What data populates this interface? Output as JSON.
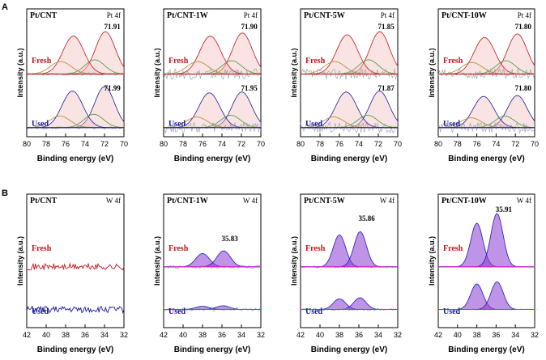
{
  "figure": {
    "section_labels": [
      "A",
      "B"
    ],
    "xlabel": "Binding energy (eV)",
    "ylabel": "Intensity (a.u.)",
    "colors": {
      "fresh_envelope": "#c0161c",
      "used_envelope": "#1a1a9c",
      "pt_fill": "#f2c2c2",
      "pt_green": "#3d9a3a",
      "pt_brown": "#b08a2a",
      "w_fill": "#8a3cd4",
      "w_envelope": "#d01ccf",
      "raw": "#9a9a9a",
      "blue_comp": "#1a1abb",
      "axis": "#000000"
    }
  },
  "chart_data": [
    {
      "id": "A1",
      "type": "line",
      "title": "Pt/CNT",
      "core_level": "Pt 4f",
      "xlim": [
        80,
        70
      ],
      "xticks": [
        80,
        78,
        76,
        74,
        72,
        70
      ],
      "xlabel": "Binding energy (eV)",
      "ylabel": "Intensity (a.u.)",
      "series": [
        {
          "name": "Fresh",
          "offset": 1.25,
          "noise": 0.03,
          "peaks": [
            {
              "c": 71.91,
              "h": 0.95,
              "w": 1.6
            },
            {
              "c": 75.2,
              "h": 0.85,
              "w": 1.7
            },
            {
              "c": 73.0,
              "h": 0.32,
              "w": 1.6
            },
            {
              "c": 76.5,
              "h": 0.28,
              "w": 1.7
            }
          ],
          "peak_label": "71.91"
        },
        {
          "name": "Used",
          "offset": 0.05,
          "noise": 0.03,
          "peaks": [
            {
              "c": 71.99,
              "h": 0.92,
              "w": 1.6
            },
            {
              "c": 75.3,
              "h": 0.82,
              "w": 1.7
            },
            {
              "c": 73.1,
              "h": 0.3,
              "w": 1.6
            },
            {
              "c": 76.6,
              "h": 0.26,
              "w": 1.7
            }
          ],
          "peak_label": "71.99"
        }
      ]
    },
    {
      "id": "A2",
      "type": "line",
      "title": "Pt/CNT-1W",
      "core_level": "Pt 4f",
      "xlim": [
        80,
        70
      ],
      "xticks": [
        80,
        78,
        76,
        74,
        72,
        70
      ],
      "xlabel": "Binding energy (eV)",
      "ylabel": "Intensity (a.u.)",
      "series": [
        {
          "name": "Fresh",
          "offset": 1.25,
          "noise": 0.12,
          "peaks": [
            {
              "c": 71.9,
              "h": 0.92,
              "w": 1.6
            },
            {
              "c": 75.2,
              "h": 0.85,
              "w": 1.7
            },
            {
              "c": 73.0,
              "h": 0.3,
              "w": 1.6
            },
            {
              "c": 76.5,
              "h": 0.28,
              "w": 1.7
            }
          ],
          "peak_label": "71.90"
        },
        {
          "name": "Used",
          "offset": 0.05,
          "noise": 0.12,
          "peaks": [
            {
              "c": 71.95,
              "h": 0.8,
              "w": 1.6
            },
            {
              "c": 75.3,
              "h": 0.78,
              "w": 1.7
            },
            {
              "c": 73.1,
              "h": 0.28,
              "w": 1.6
            },
            {
              "c": 76.6,
              "h": 0.24,
              "w": 1.7
            }
          ],
          "peak_label": "71.95"
        }
      ]
    },
    {
      "id": "A3",
      "type": "line",
      "title": "Pt/CNT-5W",
      "core_level": "Pt 4f",
      "xlim": [
        80,
        70
      ],
      "xticks": [
        80,
        78,
        76,
        74,
        72,
        70
      ],
      "xlabel": "Binding energy (eV)",
      "ylabel": "Intensity (a.u.)",
      "series": [
        {
          "name": "Fresh",
          "offset": 1.25,
          "noise": 0.12,
          "peaks": [
            {
              "c": 71.85,
              "h": 0.95,
              "w": 1.6
            },
            {
              "c": 75.2,
              "h": 0.88,
              "w": 1.7
            },
            {
              "c": 73.0,
              "h": 0.32,
              "w": 1.6
            },
            {
              "c": 76.5,
              "h": 0.28,
              "w": 1.7
            }
          ],
          "peak_label": "71.85"
        },
        {
          "name": "Used",
          "offset": 0.05,
          "noise": 0.12,
          "peaks": [
            {
              "c": 71.87,
              "h": 0.82,
              "w": 1.6
            },
            {
              "c": 75.3,
              "h": 0.8,
              "w": 1.7
            },
            {
              "c": 73.1,
              "h": 0.28,
              "w": 1.6
            },
            {
              "c": 76.6,
              "h": 0.24,
              "w": 1.7
            }
          ],
          "peak_label": "71.87"
        }
      ]
    },
    {
      "id": "A4",
      "type": "line",
      "title": "Pt/CNT-10W",
      "core_level": "Pt 4f",
      "xlim": [
        80,
        70
      ],
      "xticks": [
        80,
        78,
        76,
        74,
        72,
        70
      ],
      "xlabel": "Binding energy (eV)",
      "ylabel": "Intensity (a.u.)",
      "series": [
        {
          "name": "Fresh",
          "offset": 1.25,
          "noise": 0.12,
          "peaks": [
            {
              "c": 71.8,
              "h": 0.9,
              "w": 1.6
            },
            {
              "c": 75.2,
              "h": 0.82,
              "w": 1.7
            },
            {
              "c": 73.0,
              "h": 0.3,
              "w": 1.6
            },
            {
              "c": 76.5,
              "h": 0.26,
              "w": 1.7
            }
          ],
          "peak_label": "71.80"
        },
        {
          "name": "Used",
          "offset": 0.05,
          "noise": 0.12,
          "peaks": [
            {
              "c": 71.8,
              "h": 0.72,
              "w": 1.6
            },
            {
              "c": 75.3,
              "h": 0.7,
              "w": 1.7
            },
            {
              "c": 73.1,
              "h": 0.26,
              "w": 1.6
            },
            {
              "c": 76.6,
              "h": 0.22,
              "w": 1.7
            }
          ],
          "peak_label": "71.80"
        }
      ]
    },
    {
      "id": "B1",
      "type": "line",
      "title": "Pt/CNT",
      "core_level": "W 4f",
      "xlim": [
        42,
        32
      ],
      "xticks": [
        42,
        40,
        38,
        36,
        34,
        32
      ],
      "xlabel": "Binding energy (eV)",
      "ylabel": "Intensity (a.u.)",
      "series": [
        {
          "name": "Fresh",
          "offset": 1.0,
          "noise": 0.06,
          "peaks": [],
          "peak_label": ""
        },
        {
          "name": "Used",
          "offset": 0.2,
          "noise": 0.06,
          "peaks": [],
          "peak_label": ""
        }
      ]
    },
    {
      "id": "B2",
      "type": "line",
      "title": "Pt/CNT-1W",
      "core_level": "W 4f",
      "xlim": [
        42,
        32
      ],
      "xticks": [
        42,
        40,
        38,
        36,
        34,
        32
      ],
      "xlabel": "Binding energy (eV)",
      "ylabel": "Intensity (a.u.)",
      "series": [
        {
          "name": "Fresh",
          "offset": 1.0,
          "noise": 0.03,
          "peaks": [
            {
              "c": 38.0,
              "h": 0.25,
              "w": 1.1
            },
            {
              "c": 35.83,
              "h": 0.3,
              "w": 1.1
            }
          ],
          "peak_label": "35.83"
        },
        {
          "name": "Used",
          "offset": 0.2,
          "noise": 0.03,
          "peaks": [
            {
              "c": 38.0,
              "h": 0.06,
              "w": 1.1
            },
            {
              "c": 35.9,
              "h": 0.07,
              "w": 1.1
            }
          ],
          "peak_label": ""
        }
      ]
    },
    {
      "id": "B3",
      "type": "line",
      "title": "Pt/CNT-5W",
      "core_level": "W 4f",
      "xlim": [
        42,
        32
      ],
      "xticks": [
        42,
        40,
        38,
        36,
        34,
        32
      ],
      "xlabel": "Binding energy (eV)",
      "ylabel": "Intensity (a.u.)",
      "series": [
        {
          "name": "Fresh",
          "offset": 1.0,
          "noise": 0.02,
          "peaks": [
            {
              "c": 38.0,
              "h": 0.6,
              "w": 1.0
            },
            {
              "c": 35.86,
              "h": 0.66,
              "w": 1.0
            }
          ],
          "peak_label": "35.86"
        },
        {
          "name": "Used",
          "offset": 0.2,
          "noise": 0.02,
          "peaks": [
            {
              "c": 38.0,
              "h": 0.2,
              "w": 1.0
            },
            {
              "c": 35.9,
              "h": 0.22,
              "w": 1.0
            }
          ],
          "peak_label": ""
        }
      ]
    },
    {
      "id": "B4",
      "type": "line",
      "title": "Pt/CNT-10W",
      "core_level": "W 4f",
      "xlim": [
        42,
        32
      ],
      "xticks": [
        42,
        40,
        38,
        36,
        34,
        32
      ],
      "xlabel": "Binding energy (eV)",
      "ylabel": "Intensity (a.u.)",
      "series": [
        {
          "name": "Fresh",
          "offset": 1.0,
          "noise": 0.01,
          "peaks": [
            {
              "c": 38.0,
              "h": 0.82,
              "w": 1.0
            },
            {
              "c": 35.91,
              "h": 1.0,
              "w": 1.0
            }
          ],
          "peak_label": "35.91"
        },
        {
          "name": "Used",
          "offset": 0.2,
          "noise": 0.01,
          "peaks": [
            {
              "c": 38.0,
              "h": 0.48,
              "w": 1.0
            },
            {
              "c": 35.9,
              "h": 0.52,
              "w": 1.0
            }
          ],
          "peak_label": ""
        }
      ]
    }
  ]
}
